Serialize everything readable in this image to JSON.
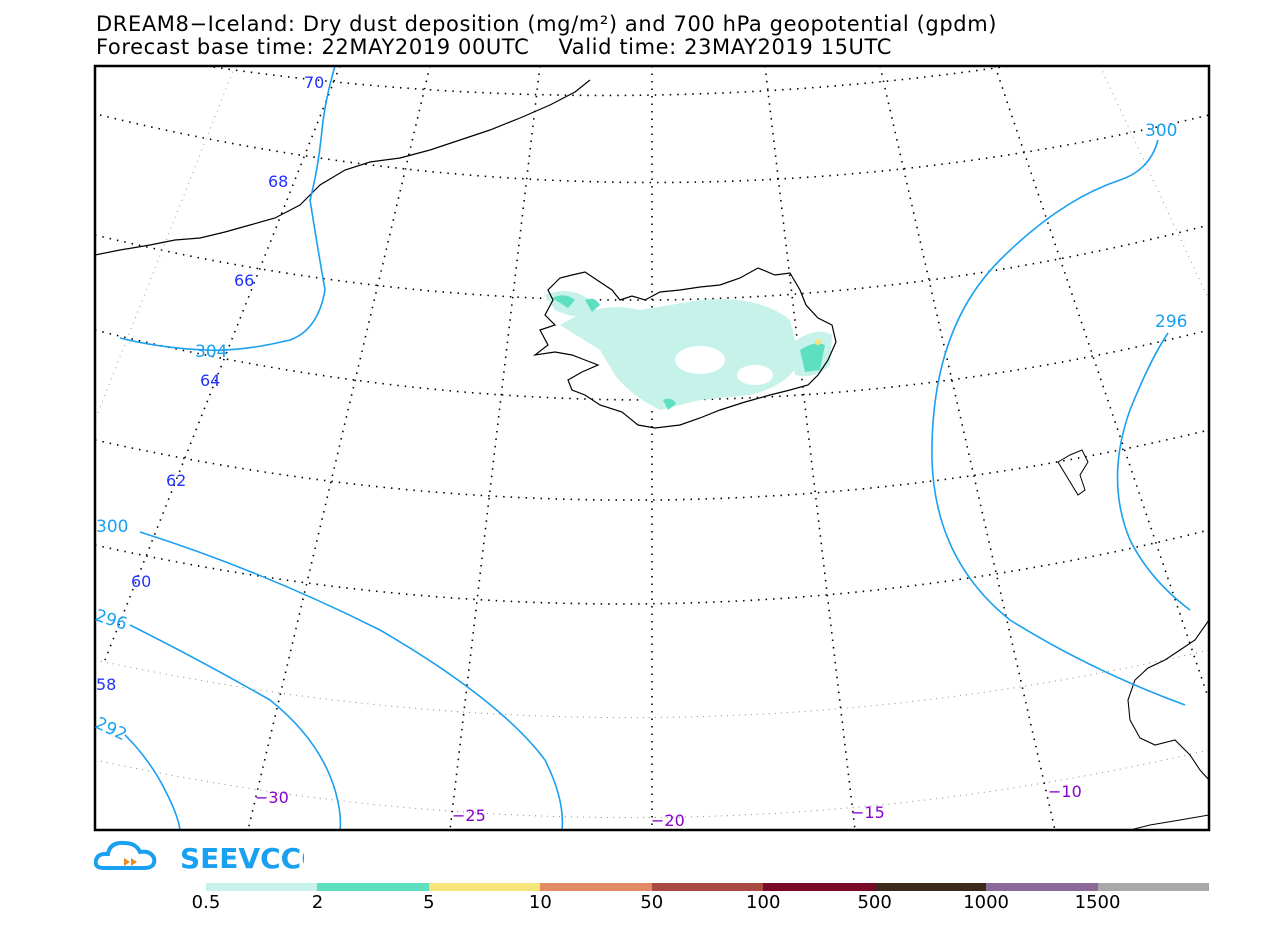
{
  "header": {
    "title_line1": "DREAM8−Iceland: Dry dust deposition (mg/m²) and 700 hPa geopotential (gpdm)",
    "title_line2": "Forecast base time: 22MAY2019 00UTC    Valid time: 23MAY2019 15UTC"
  },
  "map": {
    "latitude_labels": [
      "70",
      "68",
      "66",
      "64",
      "62",
      "60",
      "58"
    ],
    "longitude_labels": [
      "−30",
      "−25",
      "−20",
      "−15",
      "−10"
    ],
    "contour_labels": [
      "300",
      "296",
      "304",
      "300",
      "296",
      "292"
    ],
    "colors": {
      "contour": "#1aa0f0",
      "lat_label": "#2233ff",
      "lon_label": "#8800cc"
    }
  },
  "logo": {
    "text": "SEEVCCC"
  },
  "legend": {
    "colors": [
      "#c7f2ea",
      "#5ee0c0",
      "#f5e47a",
      "#e08a66",
      "#a84a40",
      "#7a0a2a",
      "#3a2a1a",
      "#8a6a9a",
      "#a8a8a8"
    ],
    "labels": [
      "0.5",
      "2",
      "5",
      "10",
      "50",
      "100",
      "500",
      "1000",
      "1500"
    ]
  }
}
